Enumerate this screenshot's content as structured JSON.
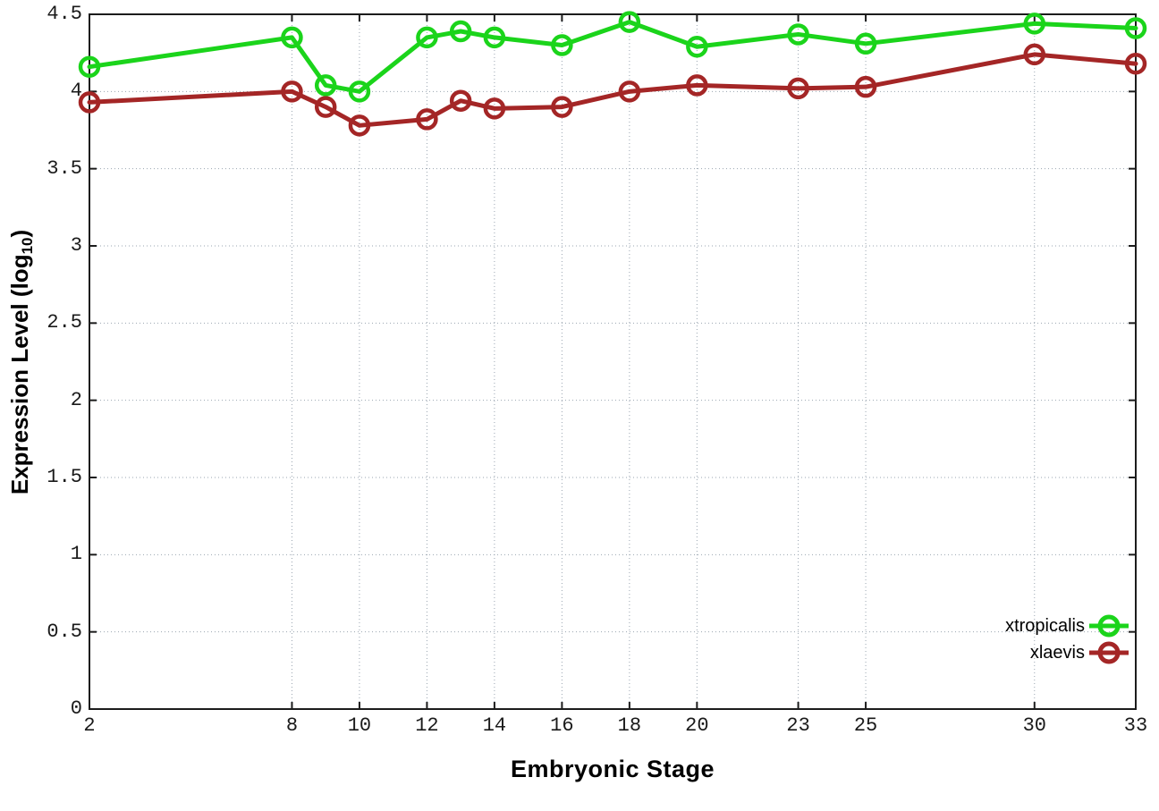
{
  "chart_data": {
    "type": "line",
    "title": "",
    "xlabel": "Embryonic Stage",
    "ylabel_base": "Expression Level (log",
    "ylabel_sub": "10",
    "ylabel_close": ")",
    "xlim": [
      2,
      33
    ],
    "ylim": [
      0,
      4.5
    ],
    "grid": true,
    "legend_position": "inside-bottom-right",
    "x_ticks": [
      2,
      8,
      10,
      12,
      14,
      16,
      18,
      20,
      23,
      25,
      30,
      33
    ],
    "y_tick_labels": [
      "0",
      "0.5",
      "1",
      "1.5",
      "2",
      "2.5",
      "3",
      "3.5",
      "4",
      "4.5"
    ],
    "y_tick_values": [
      0,
      0.5,
      1,
      1.5,
      2,
      2.5,
      3,
      3.5,
      4,
      4.5
    ],
    "x": [
      2,
      8,
      9,
      10,
      12,
      13,
      14,
      16,
      18,
      20,
      23,
      25,
      30,
      33
    ],
    "series": [
      {
        "name": "xtropicalis",
        "color": "#1bd41b",
        "marker": "open-circle",
        "values": [
          4.16,
          4.35,
          4.04,
          4.0,
          4.35,
          4.39,
          4.35,
          4.3,
          4.45,
          4.29,
          4.37,
          4.31,
          4.44,
          4.41
        ]
      },
      {
        "name": "xlaevis",
        "color": "#a42626",
        "marker": "open-circle",
        "values": [
          3.93,
          4.0,
          3.9,
          3.78,
          3.82,
          3.94,
          3.89,
          3.9,
          4.0,
          4.04,
          4.02,
          4.03,
          4.24,
          4.18
        ]
      }
    ],
    "colors": {
      "border": "#1c1c1c",
      "grid": "#9aa5b1",
      "tick_text": "#1a1a1a"
    }
  }
}
